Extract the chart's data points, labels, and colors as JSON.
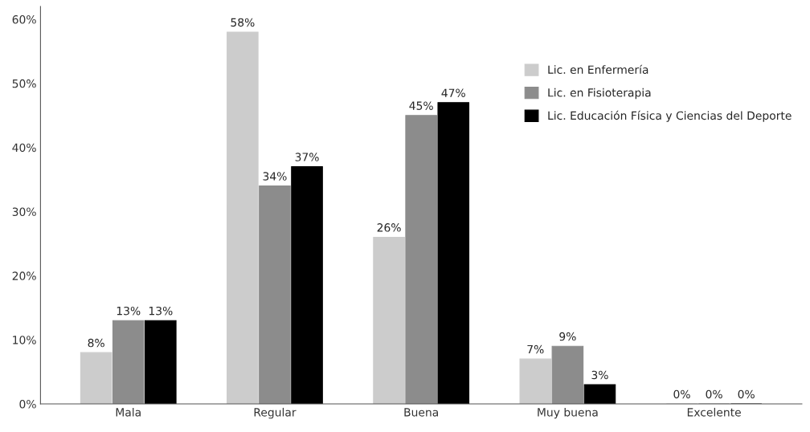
{
  "chart_data": {
    "type": "bar",
    "categories": [
      "Mala",
      "Regular",
      "Buena",
      "Muy buena",
      "Excelente"
    ],
    "series": [
      {
        "name": "Lic. en Enfermería",
        "color": "#cccccc",
        "values": [
          8,
          58,
          26,
          7,
          0
        ],
        "value_labels": [
          "8%",
          "58%",
          "26%",
          "7%",
          "0%"
        ]
      },
      {
        "name": "Lic. en Fisioterapia",
        "color": "#8c8c8c",
        "values": [
          13,
          34,
          45,
          9,
          0
        ],
        "value_labels": [
          "13%",
          "34%",
          "45%",
          "9%",
          "0%"
        ]
      },
      {
        "name": "Lic. Educación Física y Ciencias del Deporte",
        "color": "#000000",
        "values": [
          13,
          37,
          47,
          3,
          0
        ],
        "value_labels": [
          "13%",
          "37%",
          "47%",
          "3%",
          "0%"
        ]
      }
    ],
    "ylim": [
      0,
      62
    ],
    "yticks": [
      {
        "value": 0,
        "label": "0%"
      },
      {
        "value": 10,
        "label": "10%"
      },
      {
        "value": 20,
        "label": "20%"
      },
      {
        "value": 30,
        "label": "30%"
      },
      {
        "value": 40,
        "label": "40%"
      },
      {
        "value": 50,
        "label": "50%"
      },
      {
        "value": 60,
        "label": "60%"
      }
    ],
    "grid": false,
    "legend": "top right"
  }
}
